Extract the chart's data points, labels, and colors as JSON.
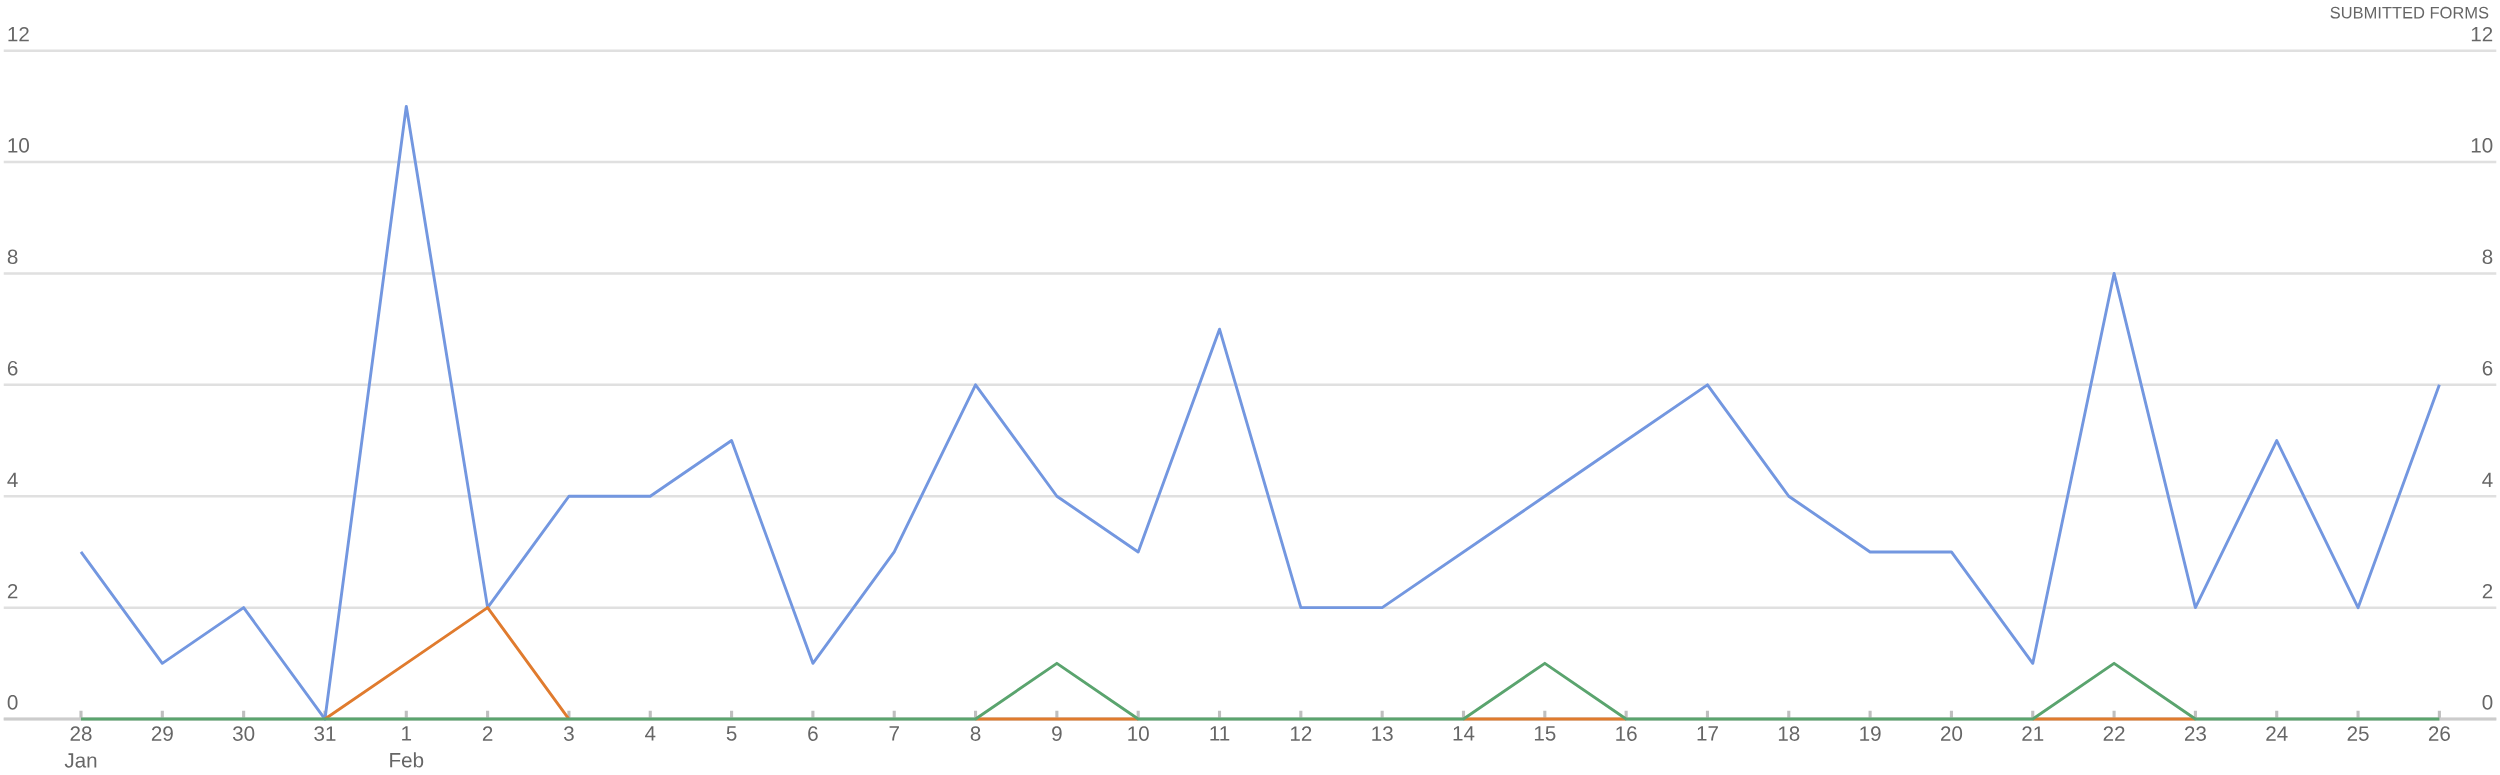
{
  "chart_data": {
    "type": "line",
    "y2label": "SUBMITTED FORMS",
    "categories": [
      "28 Jan",
      "29",
      "30",
      "31",
      "1 Feb",
      "2",
      "3",
      "4",
      "5",
      "6",
      "7",
      "8",
      "9",
      "10",
      "11",
      "12",
      "13",
      "14",
      "15",
      "16",
      "17",
      "18",
      "19",
      "20",
      "21",
      "22",
      "23",
      "24",
      "25",
      "26"
    ],
    "series": [
      {
        "color": "#7397e0",
        "values": [
          3,
          1,
          2,
          0,
          11,
          2,
          4,
          4,
          5,
          1,
          3,
          6,
          4,
          3,
          7,
          2,
          2,
          3,
          4,
          5,
          6,
          4,
          3,
          3,
          1,
          8,
          2,
          5,
          2,
          6
        ]
      },
      {
        "color": "#e07b2e",
        "values": [
          null,
          null,
          null,
          0,
          1,
          2,
          0,
          null,
          null,
          null,
          null,
          0,
          0,
          0,
          null,
          null,
          null,
          0,
          0,
          0,
          null,
          null,
          null,
          null,
          0,
          0,
          0,
          null,
          null,
          null
        ]
      },
      {
        "color": "#5aa46e",
        "values": [
          0,
          0,
          0,
          0,
          0,
          0,
          0,
          0,
          0,
          0,
          0,
          0,
          1,
          0,
          0,
          0,
          0,
          0,
          1,
          0,
          0,
          0,
          0,
          0,
          0,
          1,
          0,
          0,
          0,
          0
        ]
      }
    ],
    "ylim": [
      0,
      12
    ],
    "yticks": [
      0,
      2,
      4,
      6,
      8,
      10,
      12
    ],
    "y2lim": [
      0,
      12
    ],
    "y2ticks": [
      0,
      2,
      4,
      6,
      8,
      10,
      12
    ],
    "grid": "y",
    "marker": "none",
    "line_style": "solid"
  }
}
